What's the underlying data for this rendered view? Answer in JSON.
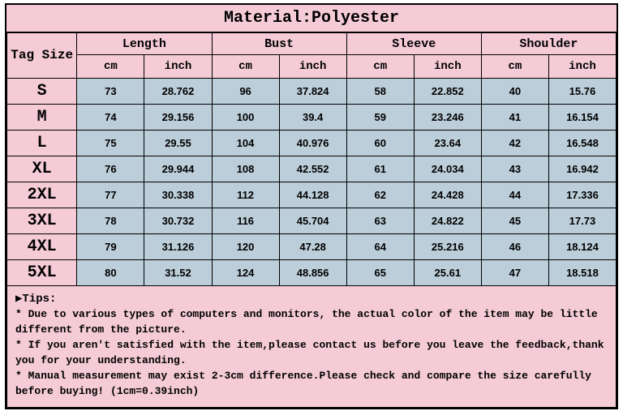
{
  "material_label": "Material:Polyester",
  "header": {
    "tag_size": "Tag Size",
    "groups": [
      "Length",
      "Bust",
      "Sleeve",
      "Shoulder"
    ],
    "units": [
      "cm",
      "inch",
      "cm",
      "inch",
      "cm",
      "inch",
      "cm",
      "inch"
    ]
  },
  "colors": {
    "pink": "#f4cbd6",
    "blue": "#bcced9",
    "border": "#000000",
    "white": "#ffffff"
  },
  "columns": {
    "size_width_pct": 11.5,
    "measure_width_pct": 11.0625
  },
  "sizes": [
    "S",
    "M",
    "L",
    "XL",
    "2XL",
    "3XL",
    "4XL",
    "5XL"
  ],
  "rows": [
    [
      "73",
      "28.762",
      "96",
      "37.824",
      "58",
      "22.852",
      "40",
      "15.76"
    ],
    [
      "74",
      "29.156",
      "100",
      "39.4",
      "59",
      "23.246",
      "41",
      "16.154"
    ],
    [
      "75",
      "29.55",
      "104",
      "40.976",
      "60",
      "23.64",
      "42",
      "16.548"
    ],
    [
      "76",
      "29.944",
      "108",
      "42.552",
      "61",
      "24.034",
      "43",
      "16.942"
    ],
    [
      "77",
      "30.338",
      "112",
      "44.128",
      "62",
      "24.428",
      "44",
      "17.336"
    ],
    [
      "78",
      "30.732",
      "116",
      "45.704",
      "63",
      "24.822",
      "45",
      "17.73"
    ],
    [
      "79",
      "31.126",
      "120",
      "47.28",
      "64",
      "25.216",
      "46",
      "18.124"
    ],
    [
      "80",
      "31.52",
      "124",
      "48.856",
      "65",
      "25.61",
      "47",
      "18.518"
    ]
  ],
  "tips": {
    "title": "▶Tips:",
    "lines": [
      "* Due to various types of computers and monitors, the actual color of the item may be little different from the picture.",
      "* If you aren't satisfied with the item,please contact us before you leave the feedback,thank you for your understanding.",
      "* Manual measurement may exist 2-3cm difference.Please check and compare the size carefully before buying! (1cm=0.39inch)"
    ]
  }
}
